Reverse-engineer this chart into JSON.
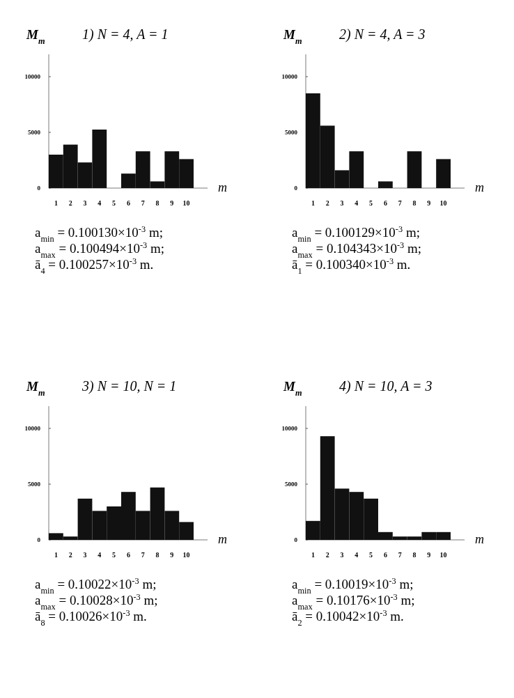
{
  "chart_data": [
    {
      "type": "bar",
      "title": "1) N =  4,  A = 1",
      "ylabel": "M$_{m}$",
      "xlabel": "m",
      "categories": [
        "1",
        "2",
        "3",
        "4",
        "5",
        "6",
        "7",
        "8",
        "9",
        "10"
      ],
      "values": [
        3000,
        3900,
        2300,
        5250,
        0,
        1300,
        3300,
        600,
        3300,
        2600
      ],
      "color": "#111111",
      "ylim": [
        0,
        12000
      ],
      "yticks": [
        0,
        5000,
        10000
      ],
      "annotations": [
        "a$_{min}$ = 0.100130×10$^{-3}$ m;",
        "a$_{max}$ = 0.100494×10$^{-3}$ m;",
        "ā$_{4}$ = 0.100257×10$^{-3}$ m."
      ]
    },
    {
      "type": "bar",
      "title": "2) N = 4,  A = 3",
      "ylabel": "M$_{m}$",
      "xlabel": "m",
      "categories": [
        "1",
        "2",
        "3",
        "4",
        "5",
        "6",
        "7",
        "8",
        "9",
        "10"
      ],
      "values": [
        8500,
        5600,
        1600,
        3300,
        0,
        600,
        0,
        3300,
        0,
        2600
      ],
      "color": "#111111",
      "ylim": [
        0,
        12000
      ],
      "yticks": [
        0,
        5000,
        10000
      ],
      "annotations": [
        "a$_{min}$ = 0.100129×10$^{-3}$ m;",
        "a$_{max}$ = 0.104343×10$^{-3}$ m;",
        "ā$_{1}$ = 0.100340×10$^{-3}$ m."
      ]
    },
    {
      "type": "bar",
      "title": "3) N = 10,  N = 1",
      "ylabel": "M$_{m}$",
      "xlabel": "m",
      "categories": [
        "1",
        "2",
        "3",
        "4",
        "5",
        "6",
        "7",
        "8",
        "9",
        "10"
      ],
      "values": [
        600,
        300,
        3700,
        2600,
        3000,
        4300,
        2600,
        4700,
        2600,
        1600
      ],
      "color": "#111111",
      "ylim": [
        0,
        12000
      ],
      "yticks": [
        0,
        5000,
        10000
      ],
      "annotations": [
        "a$_{min}$ = 0.10022×10$^{-3}$ m;",
        "a$_{max}$ = 0.10028×10$^{-3}$ m;",
        "ā$_{8}$ = 0.10026×10$^{-3}$ m."
      ]
    },
    {
      "type": "bar",
      "title": "4) N = 10,  A = 3",
      "ylabel": "M$_{m}$",
      "xlabel": "m",
      "categories": [
        "1",
        "2",
        "3",
        "4",
        "5",
        "6",
        "7",
        "8",
        "9",
        "10"
      ],
      "values": [
        1700,
        9300,
        4600,
        4300,
        3700,
        700,
        300,
        300,
        700,
        700
      ],
      "color": "#111111",
      "ylim": [
        0,
        12000
      ],
      "yticks": [
        0,
        5000,
        10000
      ],
      "annotations": [
        "a$_{min}$ = 0.10019×10$^{-3}$ m;",
        "a$_{max}$ = 0.10176×10$^{-3}$ m;",
        "ā$_{2}$ = 0.10042×10$^{-3}$ m."
      ]
    }
  ]
}
